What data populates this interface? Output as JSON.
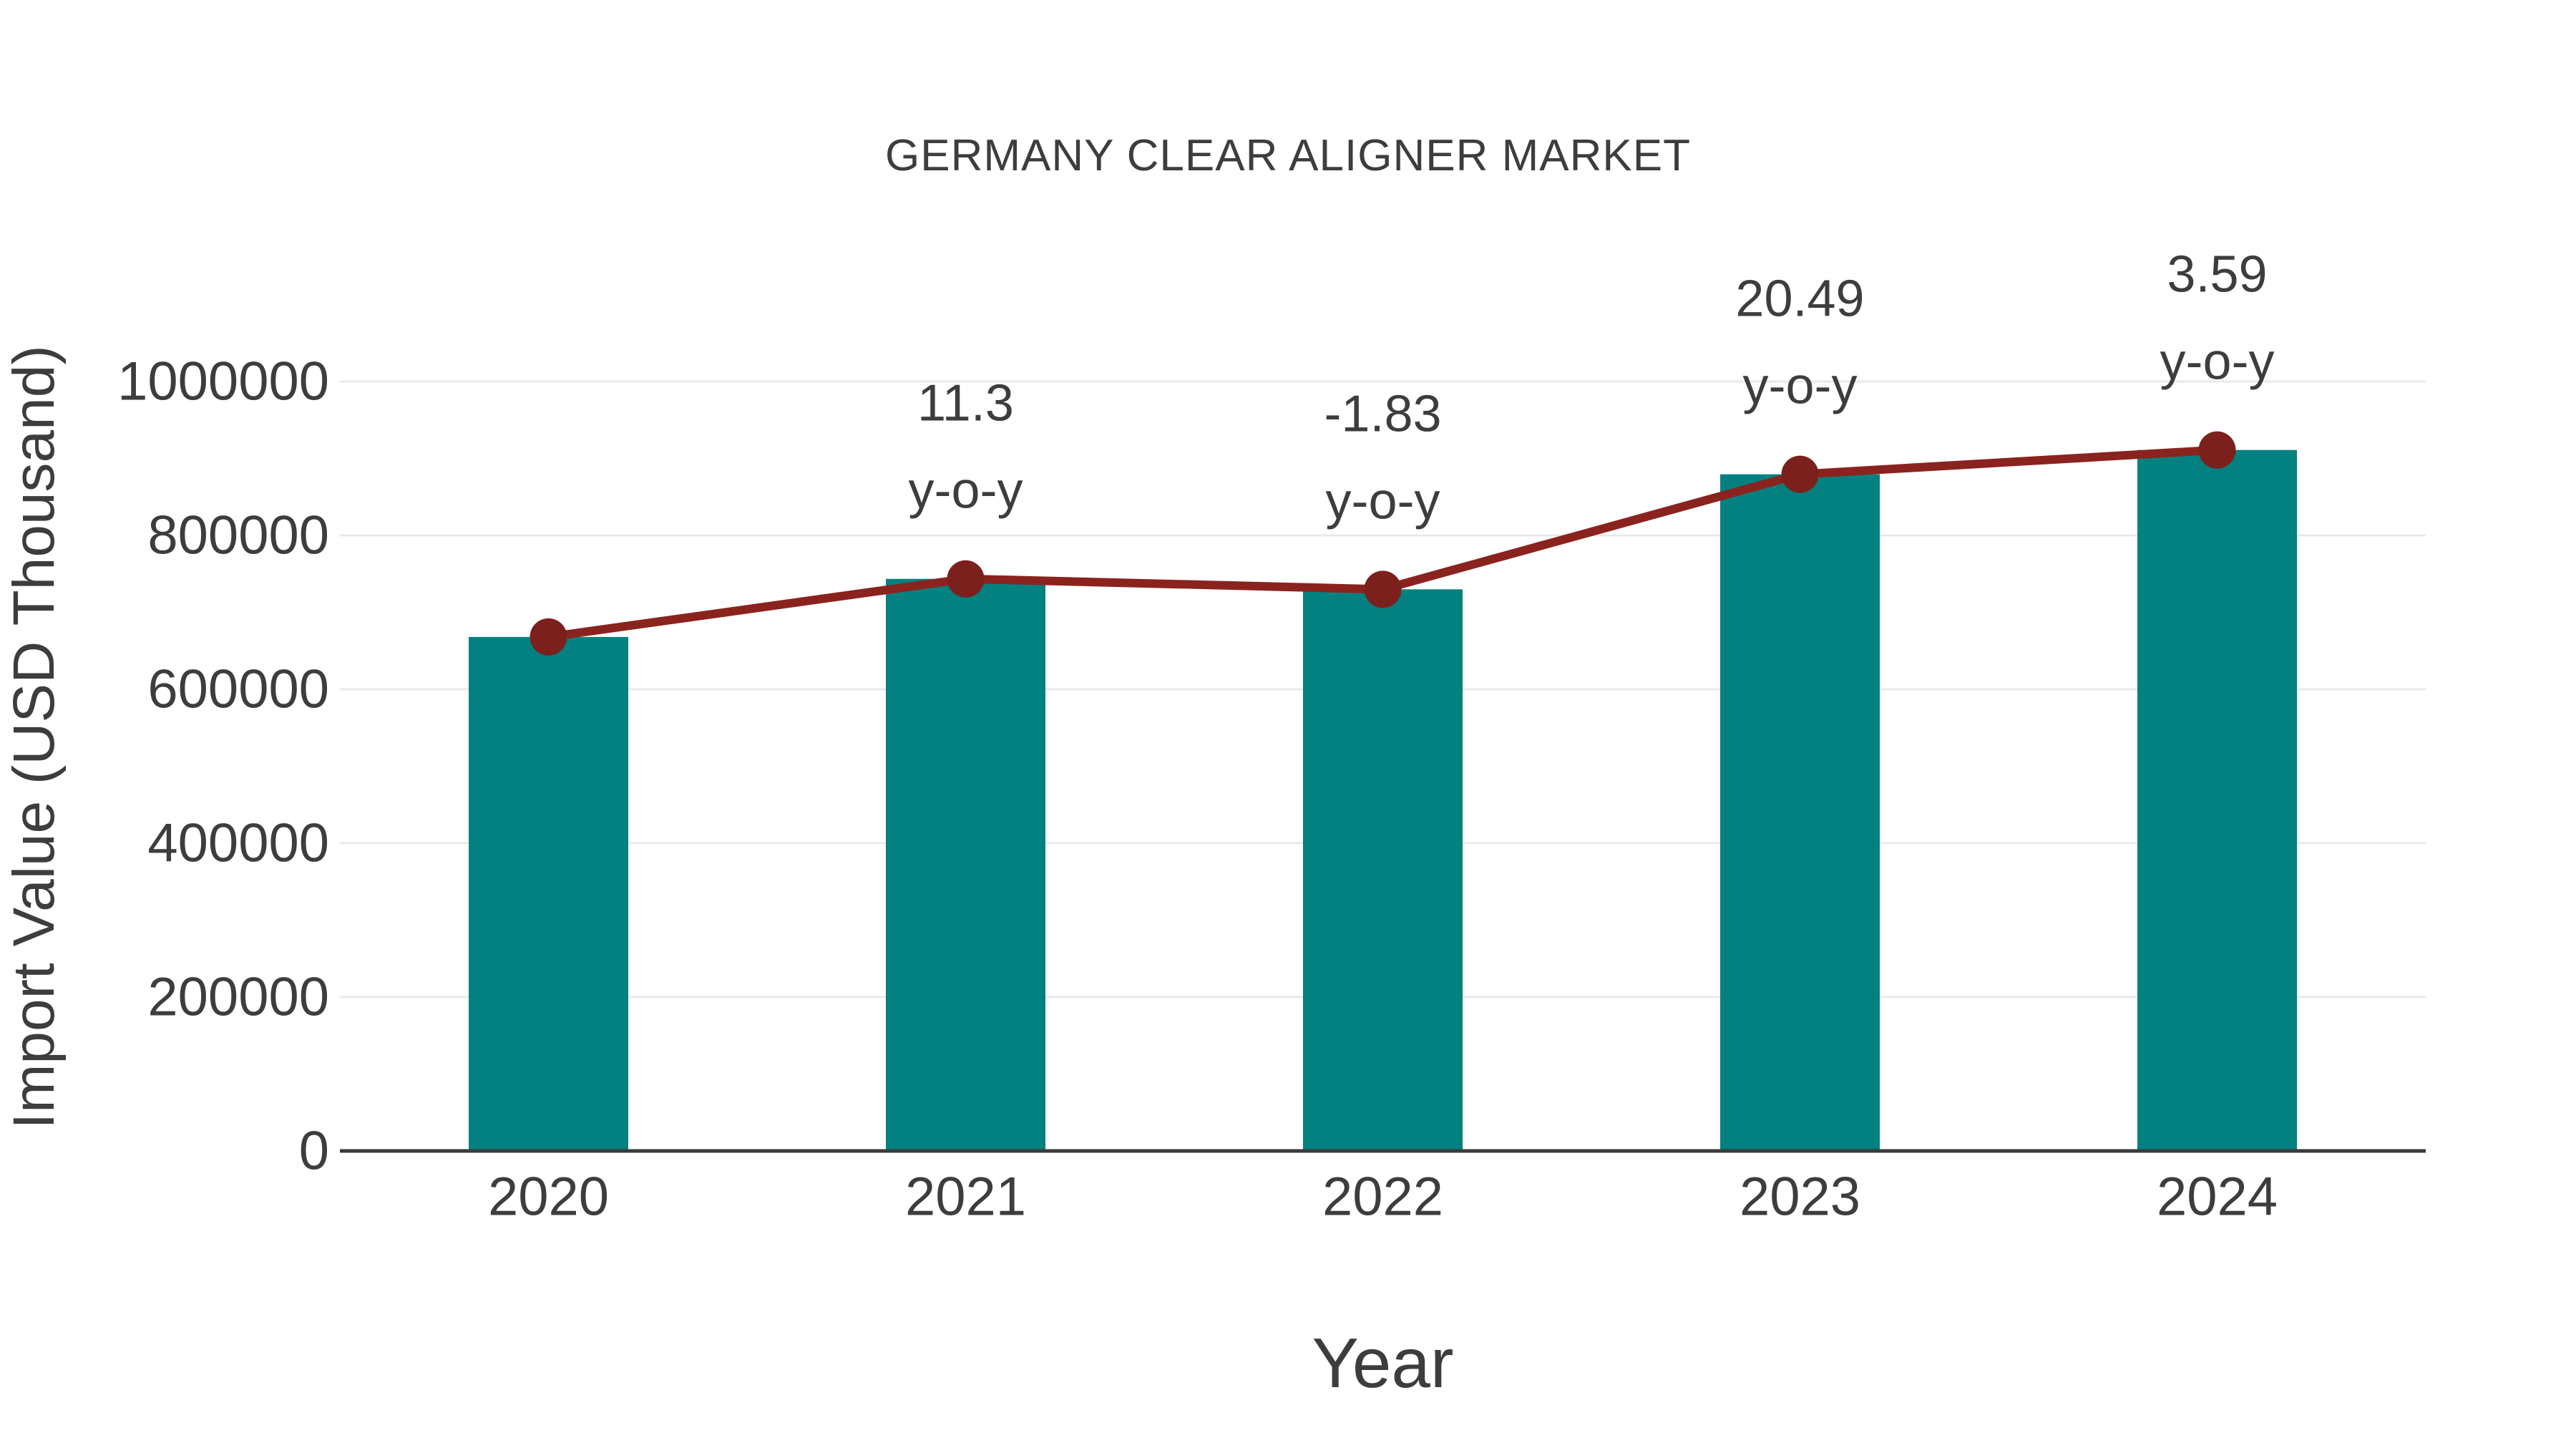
{
  "page": {
    "background": "#ffffff"
  },
  "chart_data": {
    "type": "bar+line",
    "title": "GERMANY CLEAR ALIGNER MARKET",
    "xlabel": "Year",
    "ylabel": "Import Value (USD Thousand)",
    "categories": [
      "2020",
      "2021",
      "2022",
      "2023",
      "2024"
    ],
    "series": [
      {
        "name": "import-value-bars",
        "type": "bar",
        "values": [
          668000,
          743500,
          729900,
          879400,
          911000
        ]
      },
      {
        "name": "import-value-trend",
        "type": "line",
        "values": [
          668000,
          743500,
          729900,
          879400,
          911000
        ]
      }
    ],
    "annotations": [
      {
        "category": "2021",
        "value_label": "11.3",
        "suffix_label": "y-o-y"
      },
      {
        "category": "2022",
        "value_label": "-1.83",
        "suffix_label": "y-o-y"
      },
      {
        "category": "2023",
        "value_label": "20.49",
        "suffix_label": "y-o-y"
      },
      {
        "category": "2024",
        "value_label": "3.59",
        "suffix_label": "y-o-y"
      }
    ],
    "y_ticks": [
      {
        "value": 0,
        "label": "0"
      },
      {
        "value": 200000,
        "label": "200000"
      },
      {
        "value": 400000,
        "label": "400000"
      },
      {
        "value": 600000,
        "label": "600000"
      },
      {
        "value": 800000,
        "label": "800000"
      },
      {
        "value": 1000000,
        "label": "1000000"
      }
    ],
    "ylim": [
      0,
      1000000
    ],
    "grid": true,
    "legend": "none",
    "colors": {
      "bar": "#038180",
      "line": "#8a231e",
      "marker": "#7c201d",
      "text": "#3d3d3d",
      "grid": "#e9e9e9",
      "axis": "#3a3a3a",
      "background": "#ffffff"
    }
  }
}
